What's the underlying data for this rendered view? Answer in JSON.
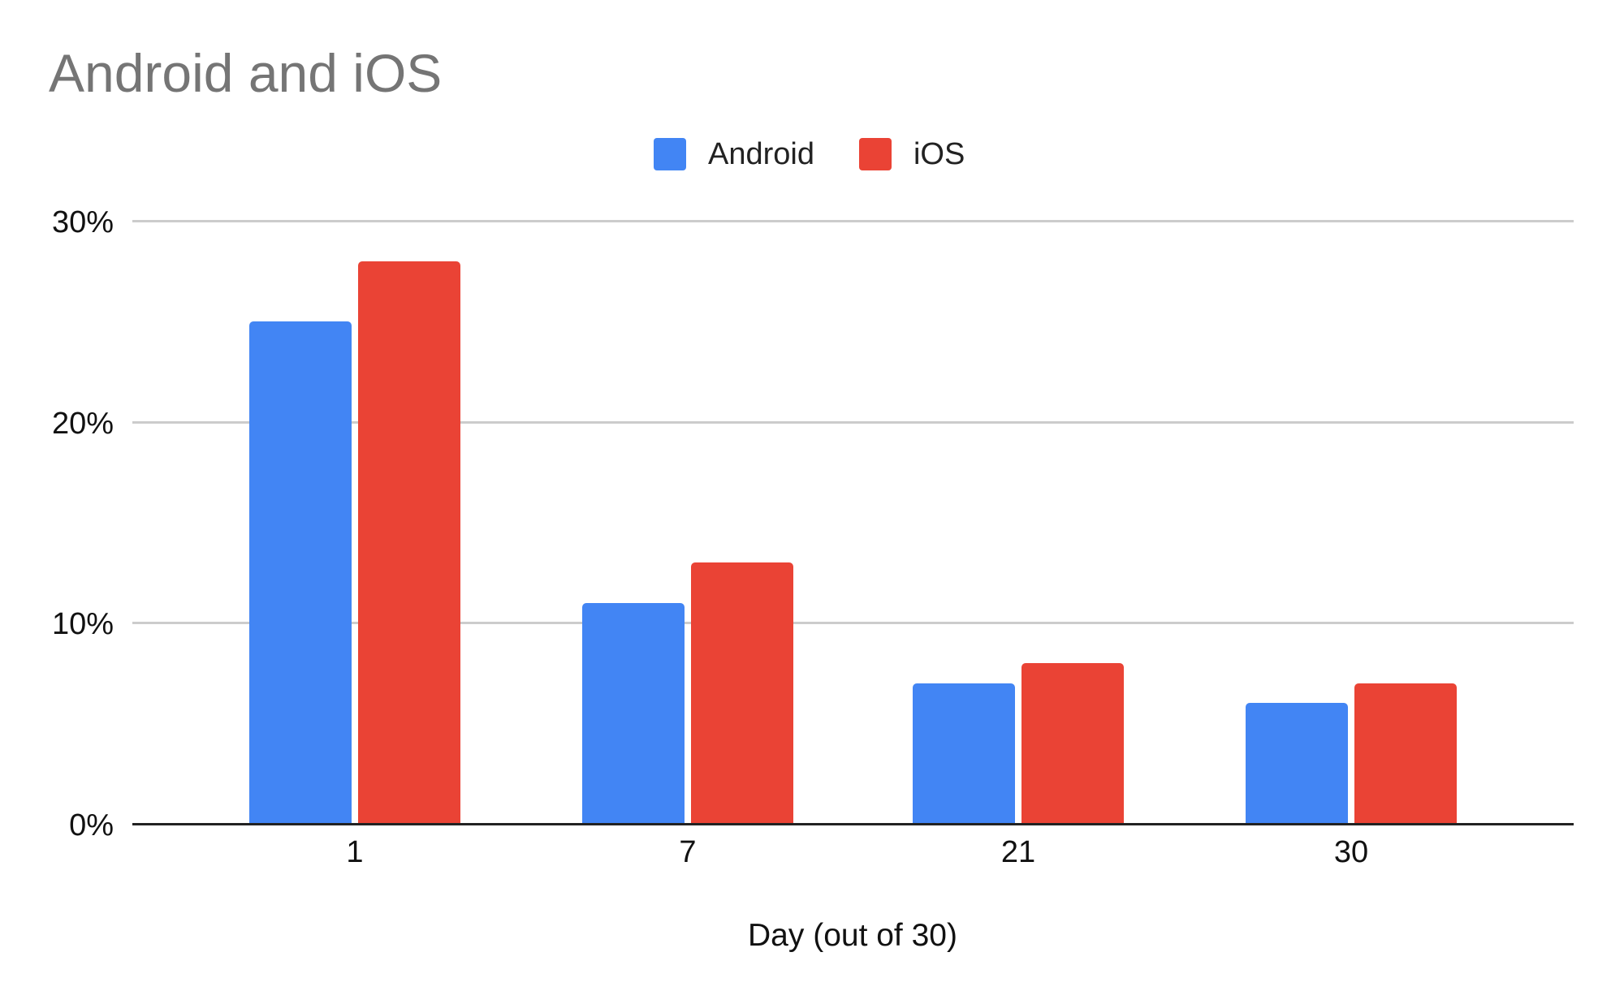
{
  "chart_data": {
    "type": "bar",
    "title": "Android and iOS",
    "xlabel": "Day (out of 30)",
    "ylabel": "",
    "categories": [
      "1",
      "7",
      "21",
      "30"
    ],
    "series": [
      {
        "name": "Android",
        "color": "#4285F4",
        "values": [
          25,
          11,
          7,
          6
        ]
      },
      {
        "name": "iOS",
        "color": "#EA4335",
        "values": [
          28,
          13,
          8,
          7
        ]
      }
    ],
    "ylim": [
      0,
      30
    ],
    "yticks": [
      0,
      10,
      20,
      30
    ],
    "ytick_labels": [
      "0%",
      "10%",
      "20%",
      "30%"
    ],
    "value_format": "percent",
    "grid": true,
    "legend_position": "top"
  },
  "title": "Android and iOS",
  "legend": {
    "items": [
      {
        "label": "Android",
        "color": "#4285F4"
      },
      {
        "label": "iOS",
        "color": "#EA4335"
      }
    ]
  },
  "axes": {
    "x_label": "Day (out of 30)",
    "x_ticks": [
      "1",
      "7",
      "21",
      "30"
    ],
    "y_ticks": [
      "0%",
      "10%",
      "20%",
      "30%"
    ]
  },
  "colors": {
    "android": "#4285F4",
    "ios": "#EA4335",
    "title": "#757575",
    "gridline": "#CCCCCC",
    "axis": "#222222"
  }
}
